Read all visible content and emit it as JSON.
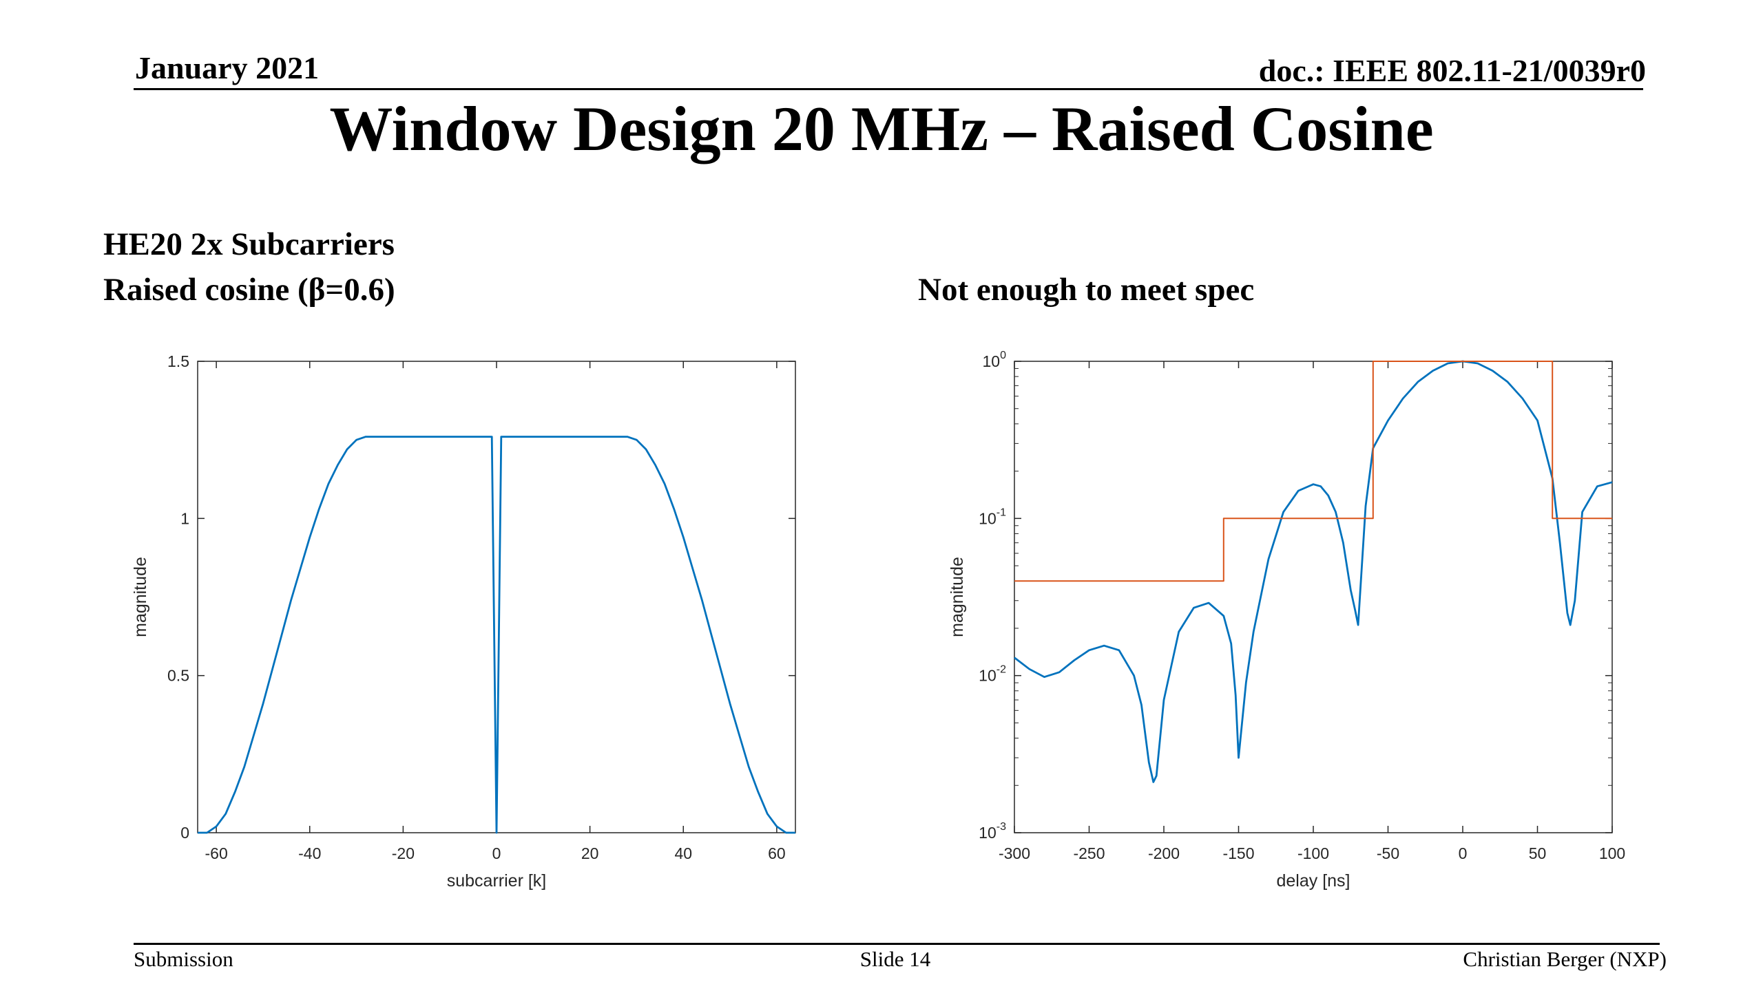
{
  "header": {
    "date": "January 2021",
    "doc": "doc.: IEEE 802.11-21/0039r0"
  },
  "title": "Window Design 20 MHz – Raised Cosine",
  "left_heading_1": "HE20 2x Subcarriers",
  "left_heading_2": "Raised cosine (β=0.6)",
  "right_heading": "Not enough to meet spec",
  "footer": {
    "left": "Submission",
    "center": "Slide 14",
    "right": "Christian Berger (NXP)"
  },
  "colors": {
    "series": "#0072bd",
    "spec": "#d95319",
    "axis": "#262626"
  },
  "chart_data": [
    {
      "type": "line",
      "xlabel": "subcarrier [k]",
      "ylabel": "magnitude",
      "xlim": [
        -64,
        64
      ],
      "ylim": [
        0,
        1.5
      ],
      "xticks": [
        -60,
        -40,
        -20,
        0,
        20,
        40,
        60
      ],
      "yticks": [
        0,
        0.5,
        1,
        1.5
      ],
      "yticklabels": [
        "0",
        "0.5",
        "1",
        "1.5"
      ],
      "grid": false,
      "series": [
        {
          "x": [
            -64,
            -62,
            -60,
            -58,
            -56,
            -54,
            -52,
            -50,
            -48,
            -46,
            -44,
            -42,
            -40,
            -38,
            -36,
            -34,
            -32,
            -30,
            -28,
            -26,
            -24,
            -20,
            -15,
            -10,
            -5,
            -2,
            -1,
            0,
            1,
            2,
            5,
            10,
            15,
            20,
            24,
            26,
            28,
            30,
            32,
            34,
            36,
            38,
            40,
            42,
            44,
            46,
            48,
            50,
            52,
            54,
            56,
            58,
            60,
            62,
            64
          ],
          "y": [
            0,
            0,
            0.02,
            0.06,
            0.13,
            0.21,
            0.31,
            0.41,
            0.52,
            0.63,
            0.74,
            0.84,
            0.94,
            1.03,
            1.11,
            1.17,
            1.22,
            1.25,
            1.26,
            1.26,
            1.26,
            1.26,
            1.26,
            1.26,
            1.26,
            1.26,
            1.26,
            0,
            1.26,
            1.26,
            1.26,
            1.26,
            1.26,
            1.26,
            1.26,
            1.26,
            1.26,
            1.25,
            1.22,
            1.17,
            1.11,
            1.03,
            0.94,
            0.84,
            0.74,
            0.63,
            0.52,
            0.41,
            0.31,
            0.21,
            0.13,
            0.06,
            0.02,
            0,
            0
          ]
        }
      ]
    },
    {
      "type": "line",
      "xlabel": "delay [ns]",
      "ylabel": "magnitude",
      "xlim": [
        -300,
        100
      ],
      "ylim": [
        0.001,
        1
      ],
      "yscale": "log",
      "xticks": [
        -300,
        -250,
        -200,
        -150,
        -100,
        -50,
        0,
        50,
        100
      ],
      "yticks": [
        0.001,
        0.01,
        0.1,
        1
      ],
      "ytick_base": "10",
      "ytick_exponents": [
        "-3",
        "-2",
        "-1",
        "0"
      ],
      "grid": false,
      "series": [
        {
          "x": [
            -300,
            -290,
            -280,
            -270,
            -260,
            -250,
            -240,
            -230,
            -220,
            -215,
            -210,
            -207,
            -205,
            -200,
            -190,
            -180,
            -170,
            -160,
            -155,
            -152,
            -150,
            -145,
            -140,
            -130,
            -120,
            -110,
            -100,
            -95,
            -90,
            -85,
            -80,
            -75,
            -72,
            -70,
            -65,
            -60,
            -50,
            -40,
            -30,
            -20,
            -10,
            0,
            10,
            20,
            30,
            40,
            50,
            60,
            65,
            70,
            72,
            75,
            80,
            90,
            100
          ],
          "y": [
            0.013,
            0.011,
            0.0098,
            0.0105,
            0.0125,
            0.0145,
            0.0155,
            0.0145,
            0.01,
            0.0065,
            0.0028,
            0.0021,
            0.0023,
            0.007,
            0.019,
            0.027,
            0.029,
            0.024,
            0.016,
            0.0075,
            0.003,
            0.009,
            0.019,
            0.055,
            0.11,
            0.15,
            0.165,
            0.16,
            0.14,
            0.11,
            0.07,
            0.035,
            0.026,
            0.021,
            0.12,
            0.28,
            0.42,
            0.58,
            0.74,
            0.87,
            0.97,
            1.0,
            0.97,
            0.87,
            0.74,
            0.58,
            0.42,
            0.18,
            0.07,
            0.025,
            0.021,
            0.03,
            0.11,
            0.16,
            0.17
          ]
        },
        {
          "x": [
            -300,
            -160,
            -160,
            -60,
            -60,
            60,
            60,
            100
          ],
          "y": [
            0.04,
            0.04,
            0.1,
            0.1,
            1,
            1,
            0.1,
            0.1
          ]
        }
      ]
    }
  ]
}
